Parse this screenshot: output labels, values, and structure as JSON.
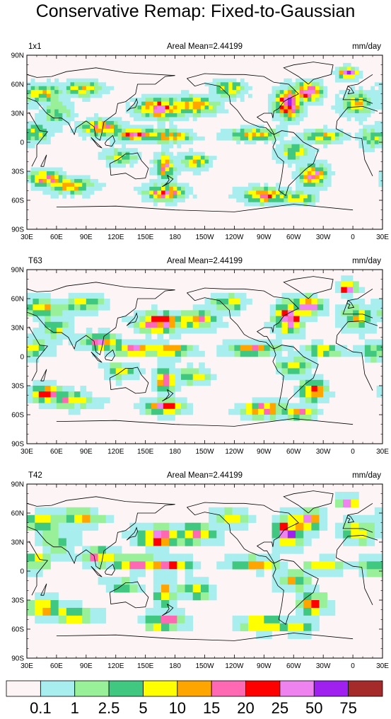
{
  "title": "Conservative Remap: Fixed-to-Gaussian",
  "chart_data": {
    "type": "heatmap",
    "units": "mm/day",
    "x_ticks": [
      "30E",
      "60E",
      "90E",
      "120E",
      "150E",
      "180",
      "150W",
      "120W",
      "90W",
      "60W",
      "30W",
      "0",
      "30E"
    ],
    "y_ticks": [
      "90N",
      "60N",
      "30N",
      "0",
      "30S",
      "60S",
      "90S"
    ],
    "xlim": [
      30,
      390
    ],
    "ylim": [
      -90,
      90
    ],
    "panels": [
      {
        "name": "1x1",
        "mean_label": "Areal Mean=2.44199",
        "grid_step": 4
      },
      {
        "name": "T63",
        "mean_label": "Areal Mean=2.44199",
        "grid_step": 6
      },
      {
        "name": "T42",
        "mean_label": "Areal Mean=2.44199",
        "grid_step": 8
      }
    ],
    "colorbar": {
      "levels": [
        "0.1",
        "1",
        "2.5",
        "5",
        "10",
        "15",
        "20",
        "25",
        "50",
        "75"
      ],
      "colors": [
        "#fdf5f5",
        "#a8eeee",
        "#98f098",
        "#40c880",
        "#ffff00",
        "#ffa500",
        "#ff69b4",
        "#ff0000",
        "#ee82ee",
        "#a020f0",
        "#a52a2a"
      ]
    },
    "features": [
      {
        "lon": 165,
        "lat": 35,
        "amp": 30,
        "slon": 14,
        "slat": 6
      },
      {
        "lon": 200,
        "lat": 38,
        "amp": 14,
        "slon": 14,
        "slat": 6
      },
      {
        "lon": 295,
        "lat": 40,
        "amp": 45,
        "slon": 8,
        "slat": 9
      },
      {
        "lon": 315,
        "lat": 52,
        "amp": 30,
        "slon": 8,
        "slat": 6
      },
      {
        "lon": 355,
        "lat": 72,
        "amp": 40,
        "slon": 6,
        "slat": 4
      },
      {
        "lon": 105,
        "lat": 15,
        "amp": 18,
        "slon": 12,
        "slat": 5
      },
      {
        "lon": 140,
        "lat": 8,
        "amp": 20,
        "slon": 14,
        "slat": 4
      },
      {
        "lon": 175,
        "lat": 6,
        "amp": 16,
        "slon": 14,
        "slat": 4
      },
      {
        "lon": 260,
        "lat": 8,
        "amp": 12,
        "slon": 16,
        "slat": 4
      },
      {
        "lon": 330,
        "lat": 6,
        "amp": 10,
        "slon": 12,
        "slat": 4
      },
      {
        "lon": 300,
        "lat": -10,
        "amp": 8,
        "slon": 10,
        "slat": 6
      },
      {
        "lon": 170,
        "lat": -25,
        "amp": 18,
        "slon": 6,
        "slat": 8
      },
      {
        "lon": 200,
        "lat": -20,
        "amp": 8,
        "slon": 10,
        "slat": 5
      },
      {
        "lon": 320,
        "lat": -35,
        "amp": 25,
        "slon": 8,
        "slat": 7
      },
      {
        "lon": 50,
        "lat": -38,
        "amp": 22,
        "slon": 10,
        "slat": 5
      },
      {
        "lon": 75,
        "lat": -45,
        "amp": 12,
        "slon": 14,
        "slat": 5
      },
      {
        "lon": 170,
        "lat": -52,
        "amp": 22,
        "slon": 12,
        "slat": 5
      },
      {
        "lon": 270,
        "lat": -55,
        "amp": 20,
        "slon": 14,
        "slat": 5
      },
      {
        "lon": 305,
        "lat": -58,
        "amp": 12,
        "slon": 10,
        "slat": 4
      },
      {
        "lon": 45,
        "lat": 50,
        "amp": 10,
        "slon": 12,
        "slat": 6
      },
      {
        "lon": 85,
        "lat": 55,
        "amp": 8,
        "slon": 14,
        "slat": 5
      },
      {
        "lon": 235,
        "lat": 55,
        "amp": 10,
        "slon": 10,
        "slat": 5
      },
      {
        "lon": 40,
        "lat": 10,
        "amp": 8,
        "slon": 8,
        "slat": 6
      },
      {
        "lon": 365,
        "lat": 40,
        "amp": 8,
        "slon": 10,
        "slat": 8
      },
      {
        "lon": 380,
        "lat": 5,
        "amp": 6,
        "slon": 8,
        "slat": 6
      },
      {
        "lon": 60,
        "lat": 30,
        "amp": 4,
        "slon": 10,
        "slat": 8
      },
      {
        "lon": 125,
        "lat": -15,
        "amp": 6,
        "slon": 10,
        "slat": 5
      }
    ]
  }
}
